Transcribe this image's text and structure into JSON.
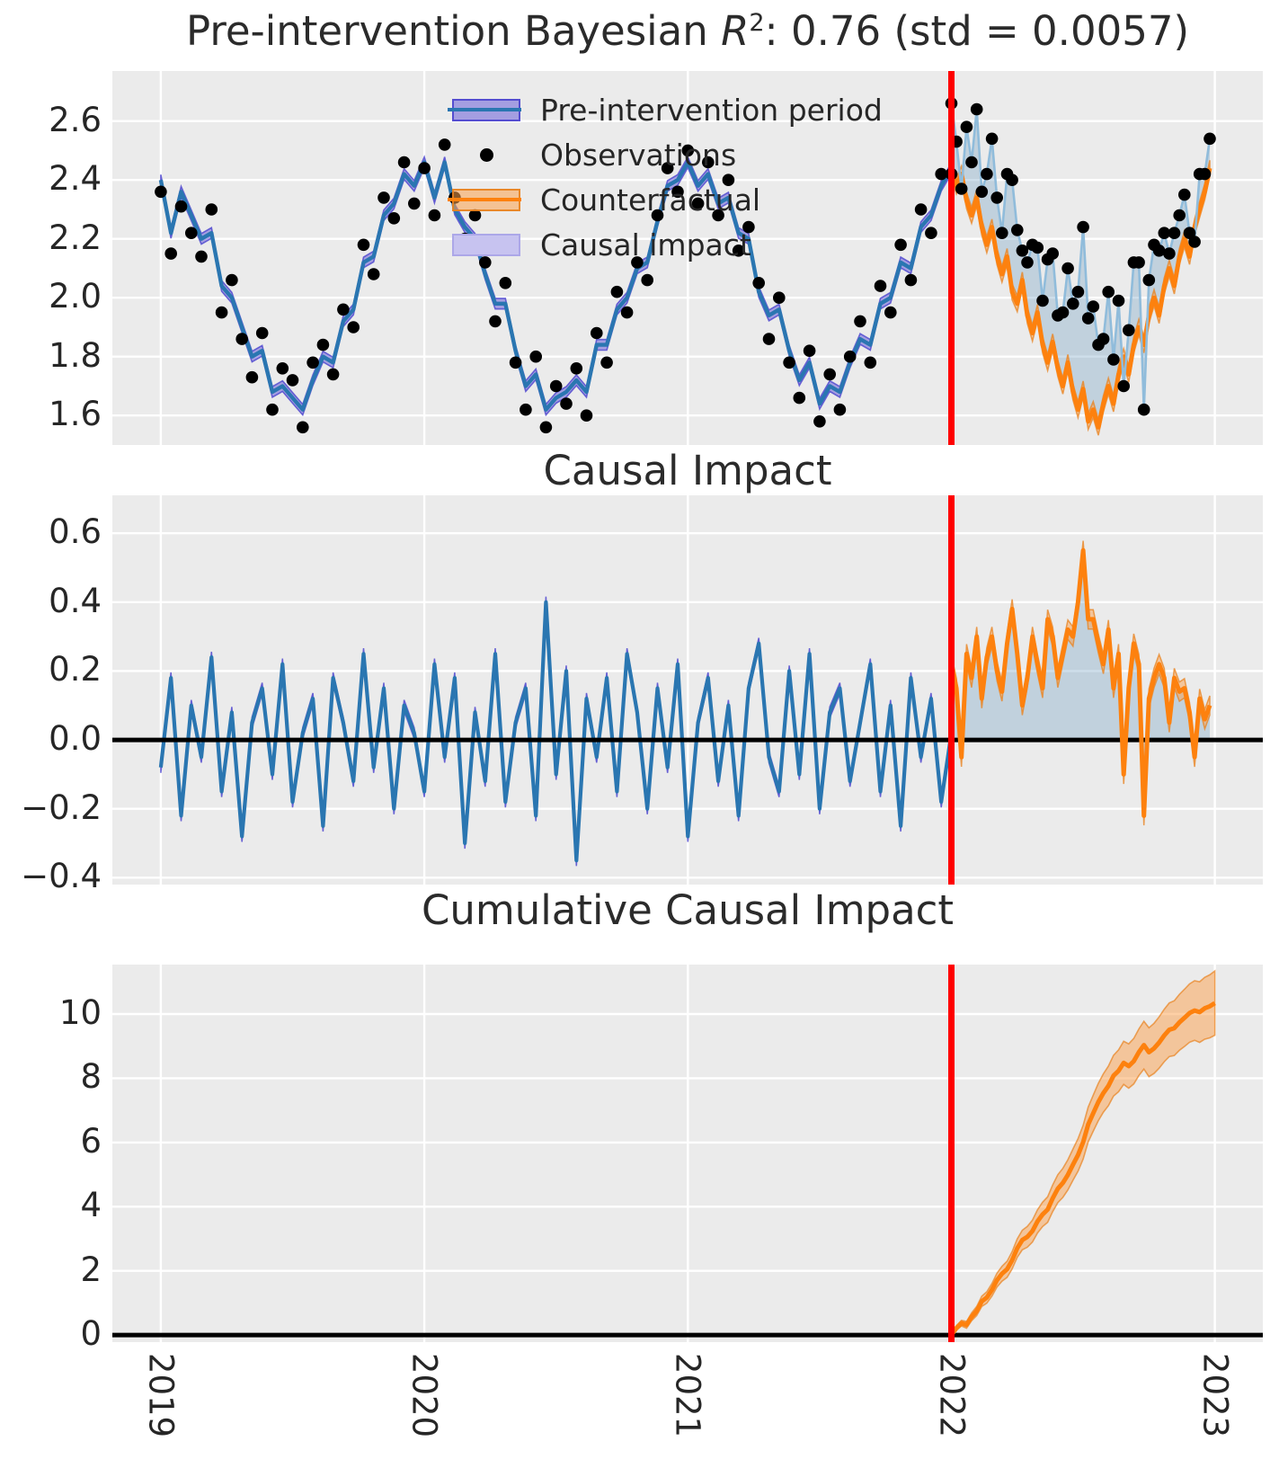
{
  "figure": {
    "title_parts": {
      "prefix": "Pre-intervention Bayesian ",
      "variable": "R",
      "superscript": "2",
      "suffix": ": 0.76 (std = 0.0057)"
    },
    "title_plain": "Pre-intervention Bayesian R²: 0.76 (std = 0.0057)",
    "stats": {
      "bayesian_r2": 0.76,
      "r2_std": 0.0057
    },
    "intervention_x": 2022,
    "colors": {
      "axes_background": "#ebebeb",
      "grid": "#ffffff",
      "text": "#262626",
      "pre_line": "#2a76b1",
      "pre_band_fill": "#6a5fd8",
      "pre_band_edge": "#4b44ce",
      "counterfactual_line": "#fd810e",
      "counterfactual_band_fill": "#fba04b",
      "counterfactual_band_edge": "#e8821e",
      "causal_impact_fill": "#7fa8c9",
      "post_observation_line": "#90bcdb",
      "observation_dot": "#000000",
      "intervention_line": "#ff0000",
      "zero_line": "#000000",
      "legend_impact_fill": "#c7c3f0",
      "legend_impact_edge": "#aca7e8"
    },
    "x_axis": {
      "xlim": [
        2018.816,
        2023.182
      ],
      "ticks": [
        {
          "v": 2019,
          "label": "2019"
        },
        {
          "v": 2020,
          "label": "2020"
        },
        {
          "v": 2021,
          "label": "2021"
        },
        {
          "v": 2022,
          "label": "2022"
        },
        {
          "v": 2023,
          "label": "2023"
        }
      ]
    }
  },
  "legend": {
    "items": [
      {
        "label": "Pre-intervention period",
        "swatch": "blue-band-line"
      },
      {
        "label": "Observations",
        "swatch": "black-dot"
      },
      {
        "label": "Counterfactual",
        "swatch": "orange-band-line"
      },
      {
        "label": "Causal impact",
        "swatch": "lightblue-patch"
      }
    ]
  },
  "chart_data": [
    {
      "type": "line",
      "title": "Pre-intervention Bayesian R²: 0.76 (std = 0.0057)",
      "ylim": [
        1.5,
        2.77
      ],
      "yticks": [
        {
          "v": 1.6,
          "label": "1.6"
        },
        {
          "v": 1.8,
          "label": "1.8"
        },
        {
          "v": 2.0,
          "label": "2.0"
        },
        {
          "v": 2.2,
          "label": "2.2"
        },
        {
          "v": 2.4,
          "label": "2.4"
        },
        {
          "v": 2.6,
          "label": "2.6"
        }
      ],
      "x_pre": {
        "start": 2019.0,
        "step": 0.0384615,
        "count": 79
      },
      "x_post": {
        "start": 2022.0,
        "step": 0.0192308,
        "count": 52
      },
      "series": {
        "observations_pre": [
          2.36,
          2.15,
          2.31,
          2.22,
          2.14,
          2.3,
          1.95,
          2.06,
          1.86,
          1.73,
          1.88,
          1.62,
          1.76,
          1.72,
          1.56,
          1.78,
          1.84,
          1.74,
          1.96,
          1.9,
          2.18,
          2.08,
          2.34,
          2.27,
          2.46,
          2.32,
          2.44,
          2.28,
          2.52,
          2.34,
          2.2,
          2.28,
          2.12,
          1.92,
          2.05,
          1.78,
          1.62,
          1.8,
          1.56,
          1.7,
          1.64,
          1.76,
          1.6,
          1.88,
          1.78,
          2.02,
          1.95,
          2.12,
          2.06,
          2.28,
          2.44,
          2.36,
          2.5,
          2.32,
          2.46,
          2.28,
          2.4,
          2.16,
          2.24,
          2.05,
          1.86,
          2.0,
          1.78,
          1.66,
          1.82,
          1.58,
          1.74,
          1.62,
          1.8,
          1.92,
          1.78,
          2.04,
          1.95,
          2.18,
          2.06,
          2.3,
          2.22,
          2.42,
          2.42
        ],
        "model_mean_pre": [
          2.4,
          2.22,
          2.36,
          2.28,
          2.2,
          2.22,
          2.04,
          2.0,
          1.9,
          1.8,
          1.82,
          1.68,
          1.7,
          1.66,
          1.62,
          1.72,
          1.8,
          1.78,
          1.92,
          1.96,
          2.12,
          2.14,
          2.28,
          2.32,
          2.42,
          2.38,
          2.46,
          2.34,
          2.46,
          2.3,
          2.24,
          2.2,
          2.08,
          1.98,
          1.98,
          1.82,
          1.7,
          1.74,
          1.62,
          1.66,
          1.68,
          1.72,
          1.68,
          1.84,
          1.84,
          1.96,
          2.0,
          2.1,
          2.12,
          2.26,
          2.38,
          2.4,
          2.46,
          2.38,
          2.42,
          2.32,
          2.34,
          2.22,
          2.2,
          2.02,
          1.94,
          1.96,
          1.82,
          1.72,
          1.78,
          1.64,
          1.7,
          1.68,
          1.78,
          1.86,
          1.84,
          1.98,
          2.0,
          2.12,
          2.1,
          2.24,
          2.28,
          2.38,
          2.44
        ],
        "model_band_halfwidth": 0.018,
        "counterfactual_post": [
          2.44,
          2.38,
          2.42,
          2.33,
          2.28,
          2.34,
          2.24,
          2.18,
          2.24,
          2.14,
          2.08,
          2.14,
          2.02,
          1.98,
          2.06,
          1.94,
          1.88,
          1.95,
          1.84,
          1.78,
          1.85,
          1.76,
          1.7,
          1.78,
          1.68,
          1.62,
          1.69,
          1.58,
          1.62,
          1.56,
          1.64,
          1.7,
          1.64,
          1.74,
          1.8,
          1.74,
          1.84,
          1.9,
          1.84,
          1.94,
          2.0,
          1.94,
          2.04,
          2.1,
          2.04,
          2.14,
          2.2,
          2.14,
          2.24,
          2.3,
          2.36,
          2.44
        ],
        "counterfactual_band_halfwidth": 0.027,
        "observations_post": [
          2.66,
          2.53,
          2.37,
          2.58,
          2.46,
          2.64,
          2.36,
          2.42,
          2.54,
          2.34,
          2.22,
          2.42,
          2.4,
          2.23,
          2.16,
          2.12,
          2.18,
          2.17,
          1.99,
          2.13,
          2.15,
          1.94,
          1.95,
          2.1,
          1.98,
          2.02,
          2.24,
          1.93,
          1.97,
          1.84,
          1.86,
          2.02,
          1.79,
          1.99,
          1.7,
          1.89,
          2.12,
          2.12,
          1.62,
          2.06,
          2.18,
          2.16,
          2.22,
          2.15,
          2.22,
          2.28,
          2.35,
          2.22,
          2.19,
          2.42,
          2.42,
          2.54
        ]
      }
    },
    {
      "type": "line",
      "title": "Causal Impact",
      "ylim": [
        -0.42,
        0.71
      ],
      "yticks": [
        {
          "v": -0.4,
          "label": "−0.4"
        },
        {
          "v": -0.2,
          "label": "−0.2"
        },
        {
          "v": 0.0,
          "label": "0.0"
        },
        {
          "v": 0.2,
          "label": "0.2"
        },
        {
          "v": 0.4,
          "label": "0.4"
        },
        {
          "v": 0.6,
          "label": "0.6"
        }
      ],
      "x_pre": {
        "start": 2019.0,
        "step": 0.0384615,
        "count": 79
      },
      "x_post": {
        "start": 2022.0,
        "step": 0.0192308,
        "count": 52
      },
      "series": {
        "impact_pre": [
          -0.08,
          0.18,
          -0.22,
          0.1,
          -0.05,
          0.24,
          -0.15,
          0.08,
          -0.28,
          0.05,
          0.15,
          -0.1,
          0.22,
          -0.18,
          0.02,
          0.12,
          -0.25,
          0.18,
          0.05,
          -0.12,
          0.25,
          -0.08,
          0.15,
          -0.2,
          0.1,
          0.02,
          -0.15,
          0.22,
          -0.05,
          0.18,
          -0.3,
          0.08,
          -0.12,
          0.25,
          -0.18,
          0.05,
          0.15,
          -0.22,
          0.4,
          -0.1,
          0.2,
          -0.35,
          0.12,
          -0.05,
          0.18,
          -0.15,
          0.25,
          0.08,
          -0.2,
          0.15,
          -0.08,
          0.22,
          -0.28,
          0.05,
          0.18,
          -0.12,
          0.1,
          -0.22,
          0.15,
          0.28,
          -0.05,
          -0.15,
          0.2,
          -0.1,
          0.25,
          -0.2,
          0.08,
          0.15,
          -0.12,
          0.05,
          0.22,
          -0.15,
          0.1,
          -0.25,
          0.18,
          -0.05,
          0.12,
          -0.18,
          0.02
        ],
        "impact_pre_band_halfwidth": 0.016,
        "impact_post": [
          0.22,
          0.15,
          -0.05,
          0.25,
          0.18,
          0.3,
          0.12,
          0.24,
          0.3,
          0.2,
          0.14,
          0.28,
          0.38,
          0.25,
          0.1,
          0.18,
          0.3,
          0.22,
          0.15,
          0.35,
          0.3,
          0.18,
          0.25,
          0.32,
          0.3,
          0.4,
          0.55,
          0.35,
          0.35,
          0.28,
          0.22,
          0.32,
          0.15,
          0.25,
          -0.1,
          0.15,
          0.28,
          0.22,
          -0.22,
          0.12,
          0.18,
          0.22,
          0.18,
          0.05,
          0.18,
          0.14,
          0.15,
          0.08,
          -0.05,
          0.12,
          0.06,
          0.1
        ],
        "impact_post_band_halfwidth": 0.028
      }
    },
    {
      "type": "area",
      "title": "Cumulative Causal Impact",
      "ylim": [
        -0.22,
        11.54
      ],
      "yticks": [
        {
          "v": 0,
          "label": "0"
        },
        {
          "v": 2,
          "label": "2"
        },
        {
          "v": 4,
          "label": "4"
        },
        {
          "v": 6,
          "label": "6"
        },
        {
          "v": 8,
          "label": "8"
        },
        {
          "v": 10,
          "label": "10"
        }
      ],
      "x_post": {
        "start": 2022.0,
        "step": 0.0192308,
        "count": 53
      },
      "series": {
        "cumulative_impact": [
          0.0,
          0.22,
          0.37,
          0.32,
          0.57,
          0.75,
          1.05,
          1.17,
          1.41,
          1.71,
          1.91,
          2.05,
          2.33,
          2.71,
          2.96,
          3.06,
          3.24,
          3.54,
          3.76,
          3.91,
          4.26,
          4.56,
          4.74,
          4.99,
          5.31,
          5.61,
          6.01,
          6.56,
          6.91,
          7.26,
          7.54,
          7.76,
          8.08,
          8.23,
          8.48,
          8.38,
          8.53,
          8.81,
          9.03,
          8.81,
          8.93,
          9.11,
          9.33,
          9.51,
          9.56,
          9.74,
          9.88,
          10.03,
          10.11,
          10.06,
          10.18,
          10.24,
          10.34
        ],
        "band_halfwidth_start": 0.05,
        "band_halfwidth_end": 1.0
      }
    }
  ]
}
